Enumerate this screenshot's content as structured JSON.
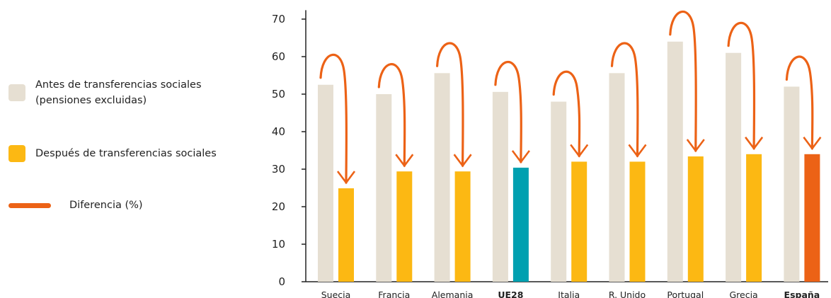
{
  "legend": {
    "before_label_1": "Antes de transferencias sociales",
    "before_label_2": "(pensiones excluidas)",
    "after_label": "Después de transferencias sociales",
    "diff_label": "Diferencia (%)"
  },
  "colors": {
    "before": "#e6dfd2",
    "after": "#fcb813",
    "ue28": "#00a0b0",
    "espana": "#ec6216",
    "arrow": "#ec6216",
    "axis": "#222222"
  },
  "chart_data": {
    "type": "bar",
    "categories": [
      "Suecia",
      "Francia",
      "Alemania",
      "UE28",
      "Italia",
      "R. Unido",
      "Portugal",
      "Grecia",
      "España"
    ],
    "highlight": {
      "UE28": "ue28",
      "España": "espana"
    },
    "series": [
      {
        "name": "Antes de transferencias sociales (pensiones excluidas)",
        "values": [
          52.5,
          50,
          55.6,
          50.6,
          48,
          55.6,
          64,
          61,
          52
        ]
      },
      {
        "name": "Después de transferencias sociales",
        "values": [
          24.9,
          29.4,
          29.4,
          30.4,
          32,
          32,
          33.4,
          34,
          34
        ]
      }
    ],
    "yticks": [
      0,
      10,
      20,
      30,
      40,
      50,
      60,
      70
    ],
    "ylim": [
      0,
      72
    ],
    "xlabel": "",
    "ylabel": "",
    "title": ""
  }
}
